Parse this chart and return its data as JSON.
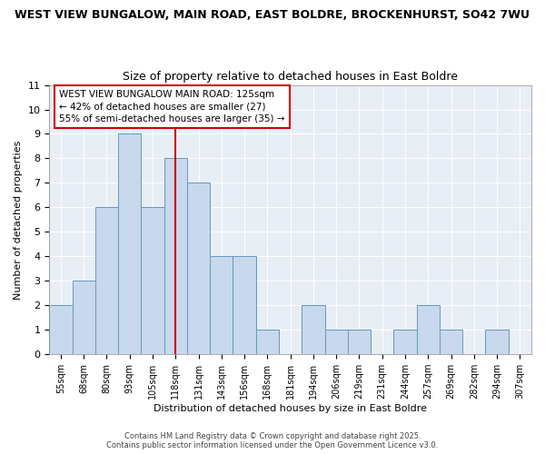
{
  "title_line1": "WEST VIEW BUNGALOW, MAIN ROAD, EAST BOLDRE, BROCKENHURST, SO42 7WU",
  "title_line2": "Size of property relative to detached houses in East Boldre",
  "xlabel": "Distribution of detached houses by size in East Boldre",
  "ylabel": "Number of detached properties",
  "bin_labels": [
    "55sqm",
    "68sqm",
    "80sqm",
    "93sqm",
    "105sqm",
    "118sqm",
    "131sqm",
    "143sqm",
    "156sqm",
    "168sqm",
    "181sqm",
    "194sqm",
    "206sqm",
    "219sqm",
    "231sqm",
    "244sqm",
    "257sqm",
    "269sqm",
    "282sqm",
    "294sqm",
    "307sqm"
  ],
  "bar_heights": [
    2,
    3,
    6,
    9,
    6,
    8,
    7,
    4,
    4,
    1,
    0,
    2,
    1,
    1,
    0,
    1,
    2,
    1,
    0,
    1,
    0
  ],
  "bar_color": "#c8d8ed",
  "bar_edge_color": "#6699bb",
  "vline_x": 5,
  "vline_color": "#cc0000",
  "ylim": [
    0,
    11
  ],
  "yticks": [
    0,
    1,
    2,
    3,
    4,
    5,
    6,
    7,
    8,
    9,
    10,
    11
  ],
  "annotation_text": "WEST VIEW BUNGALOW MAIN ROAD: 125sqm\n← 42% of detached houses are smaller (27)\n55% of semi-detached houses are larger (35) →",
  "annotation_box_color": "#ffffff",
  "annotation_box_edge": "#cc0000",
  "footer_line1": "Contains HM Land Registry data © Crown copyright and database right 2025.",
  "footer_line2": "Contains public sector information licensed under the Open Government Licence v3.0.",
  "bg_color": "#ffffff",
  "plot_bg_color": "#e8eef5",
  "grid_color": "#ffffff"
}
